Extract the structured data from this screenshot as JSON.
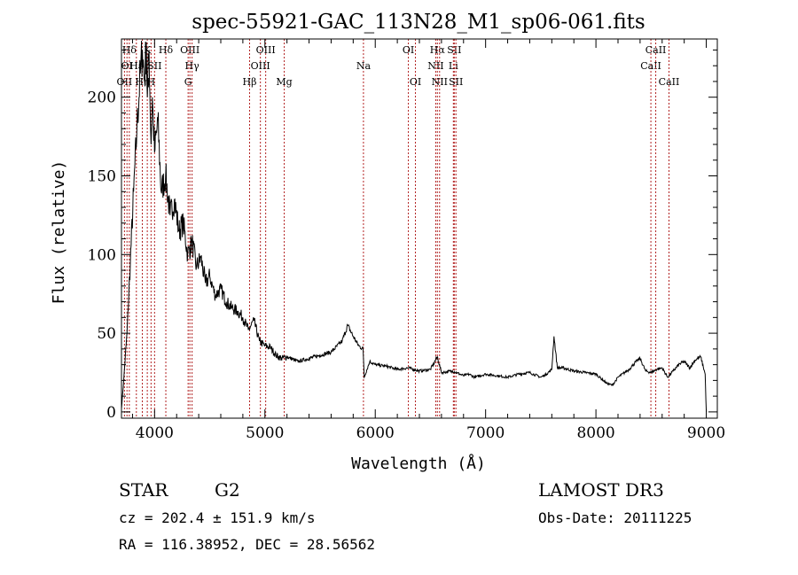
{
  "chart_data": {
    "type": "line",
    "title": "spec-55921-GAC_113N28_M1_sp06-061.fits",
    "xlabel": "Wavelength (Å)",
    "ylabel": "Flux (relative)",
    "xlim": [
      3700,
      9100
    ],
    "ylim": [
      -4,
      237
    ],
    "xticks": [
      4000,
      5000,
      6000,
      7000,
      8000,
      9000
    ],
    "yticks": [
      0,
      50,
      100,
      150,
      200
    ],
    "line_color": "#000000",
    "marker_color": "#b22222",
    "series": [
      {
        "name": "spectrum",
        "x": [
          3700,
          3720,
          3750,
          3780,
          3810,
          3840,
          3870,
          3890,
          3910,
          3925,
          3935,
          3950,
          3968,
          3980,
          4000,
          4030,
          4060,
          4100,
          4140,
          4180,
          4220,
          4260,
          4300,
          4340,
          4380,
          4420,
          4460,
          4500,
          4550,
          4600,
          4650,
          4700,
          4750,
          4800,
          4850,
          4900,
          4950,
          5000,
          5050,
          5100,
          5150,
          5200,
          5300,
          5400,
          5500,
          5600,
          5700,
          5750,
          5800,
          5850,
          5890,
          5900,
          5950,
          6000,
          6100,
          6200,
          6300,
          6400,
          6500,
          6563,
          6600,
          6700,
          6800,
          6850,
          6900,
          7000,
          7100,
          7200,
          7300,
          7400,
          7500,
          7550,
          7600,
          7620,
          7650,
          7700,
          7800,
          7900,
          8000,
          8100,
          8150,
          8200,
          8300,
          8350,
          8400,
          8450,
          8500,
          8550,
          8600,
          8650,
          8700,
          8750,
          8800,
          8850,
          8900,
          8950,
          8990,
          9000
        ],
        "values": [
          2,
          20,
          50,
          95,
          140,
          180,
          215,
          230,
          210,
          235,
          200,
          230,
          170,
          200,
          165,
          185,
          140,
          150,
          125,
          135,
          115,
          120,
          100,
          108,
          92,
          98,
          82,
          86,
          74,
          78,
          70,
          66,
          64,
          60,
          52,
          58,
          45,
          42,
          41,
          36,
          34,
          35,
          32,
          34,
          36,
          38,
          45,
          55,
          48,
          42,
          40,
          22,
          32,
          30,
          29,
          27,
          28,
          26,
          27,
          35,
          25,
          26,
          23,
          24,
          22,
          24,
          23,
          22,
          24,
          25,
          22,
          24,
          27,
          48,
          28,
          28,
          26,
          25,
          24,
          18,
          17,
          22,
          27,
          31,
          34,
          26,
          25,
          27,
          28,
          22,
          26,
          30,
          32,
          28,
          33,
          35,
          24,
          0
        ]
      }
    ],
    "markers": [
      {
        "name": "OII",
        "wave": 3727,
        "label": "OII",
        "row": 2
      },
      {
        "name": "OI",
        "wave": 3750,
        "label": "OI",
        "row": 1
      },
      {
        "name": "Hdelta-a",
        "wave": 3771,
        "label": "Hδ",
        "row": 0
      },
      {
        "name": "Hepsilon",
        "wave": 3835,
        "label": "Hε",
        "row": 1
      },
      {
        "name": "Heta",
        "wave": 3889,
        "label": "Hη",
        "row": 2
      },
      {
        "name": "CaK",
        "wave": 3934,
        "label": "K",
        "row": 0
      },
      {
        "name": "CaH",
        "wave": 3968,
        "label": "H",
        "row": 2
      },
      {
        "name": "SII-a",
        "wave": 4000,
        "label": "SII",
        "row": 1
      },
      {
        "name": "Hdelta",
        "wave": 4102,
        "label": "Hδ",
        "row": 0
      },
      {
        "name": "OIII-a",
        "wave": 4320,
        "label": "OIII",
        "row": 0
      },
      {
        "name": "Hgamma",
        "wave": 4340,
        "label": "Hγ",
        "row": 1
      },
      {
        "name": "G",
        "wave": 4304,
        "label": "G",
        "row": 2
      },
      {
        "name": "Hbeta",
        "wave": 4861,
        "label": "Hβ",
        "row": 2
      },
      {
        "name": "OIII-b",
        "wave": 4959,
        "label": "OIII",
        "row": 1
      },
      {
        "name": "OIII-c",
        "wave": 5007,
        "label": "OIII",
        "row": 0
      },
      {
        "name": "Mg",
        "wave": 5175,
        "label": "Mg",
        "row": 2
      },
      {
        "name": "Na",
        "wave": 5893,
        "label": "Na",
        "row": 1
      },
      {
        "name": "OI-a",
        "wave": 6300,
        "label": "OI",
        "row": 0
      },
      {
        "name": "OI-b",
        "wave": 6364,
        "label": "OI",
        "row": 2
      },
      {
        "name": "NII-a",
        "wave": 6548,
        "label": "NII",
        "row": 1
      },
      {
        "name": "Halpha",
        "wave": 6563,
        "label": "Hα",
        "row": 0
      },
      {
        "name": "NII-b",
        "wave": 6583,
        "label": "NII",
        "row": 2
      },
      {
        "name": "Li",
        "wave": 6708,
        "label": "Li",
        "row": 1
      },
      {
        "name": "SII-b",
        "wave": 6716,
        "label": "SII",
        "row": 0
      },
      {
        "name": "SII-c",
        "wave": 6731,
        "label": "SII",
        "row": 2
      },
      {
        "name": "CaII-a",
        "wave": 8498,
        "label": "CaII",
        "row": 1
      },
      {
        "name": "CaII-b",
        "wave": 8542,
        "label": "CaII",
        "row": 0
      },
      {
        "name": "CaII-c",
        "wave": 8662,
        "label": "CaII",
        "row": 2
      }
    ]
  },
  "info": {
    "object_class": "STAR",
    "subclass": "G2",
    "survey": "LAMOST DR3",
    "redshift": "cz = 202.4 ± 151.9 km/s",
    "obs_date": "Obs-Date: 20111225",
    "coords": "RA = 116.38952, DEC =  28.56562"
  }
}
